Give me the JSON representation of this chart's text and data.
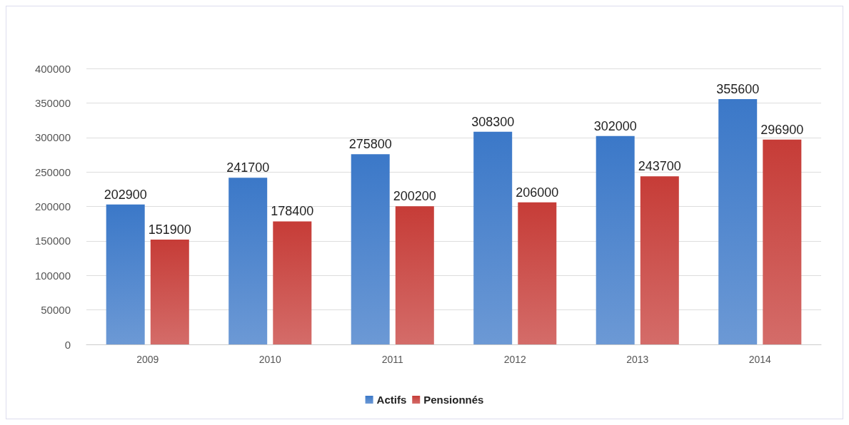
{
  "chart_data": {
    "type": "bar",
    "categories": [
      "2009",
      "2010",
      "2011",
      "2012",
      "2013",
      "2014"
    ],
    "series": [
      {
        "name": "Actifs",
        "color": "#3b78c8",
        "values": [
          202900,
          241700,
          275800,
          308300,
          302000,
          355600
        ]
      },
      {
        "name": "Pensionnés",
        "color": "#c63c37",
        "values": [
          151900,
          178400,
          200200,
          206000,
          243700,
          296900
        ]
      }
    ],
    "ylim": [
      0,
      400000
    ],
    "yticks": [
      0,
      50000,
      100000,
      150000,
      200000,
      250000,
      300000,
      350000,
      400000
    ],
    "grid": "y",
    "legend": "bottom",
    "data_labels": true
  }
}
